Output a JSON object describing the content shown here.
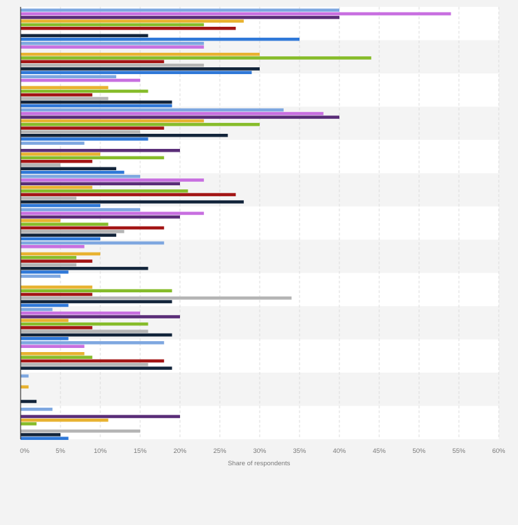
{
  "chart_data": {
    "type": "bar",
    "orientation": "horizontal",
    "title": "",
    "xlabel": "Share of respondents",
    "ylabel": "",
    "xlim": [
      0,
      60
    ],
    "x_ticks": [
      0,
      5,
      10,
      15,
      20,
      25,
      30,
      35,
      40,
      45,
      50,
      55,
      60
    ],
    "x_tick_labels": [
      "0%",
      "5%",
      "10%",
      "15%",
      "20%",
      "25%",
      "30%",
      "35%",
      "40%",
      "45%",
      "50%",
      "55%",
      "60%"
    ],
    "grid": true,
    "legend": "none",
    "categories": [
      "",
      "",
      "",
      "",
      "",
      "",
      "",
      "",
      "",
      "",
      "",
      "",
      ""
    ],
    "series": [
      {
        "color": "#7ea7e0",
        "values": [
          40,
          23,
          12,
          33,
          8,
          15,
          15,
          18,
          5,
          4,
          18,
          1,
          4
        ]
      },
      {
        "color": "#c86fe0",
        "values": [
          54,
          23,
          15,
          38,
          0,
          23,
          23,
          8,
          0,
          15,
          8,
          0,
          0
        ]
      },
      {
        "color": "#5a2d78",
        "values": [
          40,
          0,
          0,
          40,
          20,
          20,
          20,
          0,
          0,
          20,
          0,
          0,
          20
        ]
      },
      {
        "color": "#e8b230",
        "values": [
          28,
          30,
          11,
          23,
          10,
          9,
          5,
          10,
          9,
          6,
          8,
          1,
          11
        ]
      },
      {
        "color": "#86bc2a",
        "values": [
          23,
          44,
          16,
          30,
          18,
          21,
          11,
          7,
          19,
          16,
          9,
          0,
          2
        ]
      },
      {
        "color": "#a31515",
        "values": [
          27,
          18,
          9,
          18,
          9,
          27,
          18,
          9,
          9,
          9,
          18,
          0,
          0
        ]
      },
      {
        "color": "#b5b5b5",
        "values": [
          0,
          23,
          11,
          15,
          5,
          7,
          13,
          7,
          34,
          16,
          16,
          0,
          15
        ]
      },
      {
        "color": "#12243a",
        "values": [
          16,
          30,
          19,
          26,
          12,
          28,
          12,
          16,
          19,
          19,
          19,
          2,
          5
        ]
      },
      {
        "color": "#2f78d8",
        "values": [
          35,
          29,
          19,
          16,
          13,
          10,
          10,
          6,
          6,
          6,
          0,
          0,
          6
        ]
      }
    ]
  }
}
